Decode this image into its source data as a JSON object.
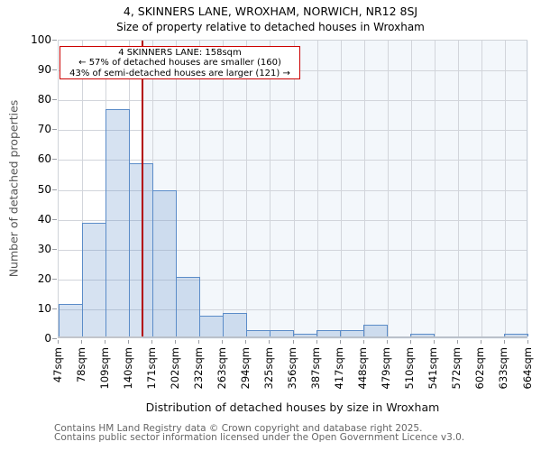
{
  "title": "4, SKINNERS LANE, WROXHAM, NORWICH, NR12 8SJ",
  "subtitle": "Size of property relative to detached houses in Wroxham",
  "annotation": {
    "line1": "4 SKINNERS LANE: 158sqm",
    "line2": "← 57% of detached houses are smaller (160)",
    "line3": "43% of semi-detached houses are larger (121) →"
  },
  "chart_data": {
    "type": "bar",
    "title": "4, SKINNERS LANE, WROXHAM, NORWICH, NR12 8SJ",
    "subtitle": "Size of property relative to detached houses in Wroxham",
    "xlabel": "Distribution of detached houses by size in Wroxham",
    "ylabel": "Number of detached properties",
    "bin_edges": [
      47,
      78,
      109,
      140,
      171,
      202,
      232,
      263,
      294,
      325,
      356,
      387,
      417,
      448,
      479,
      510,
      541,
      572,
      602,
      633,
      664
    ],
    "tick_labels": [
      "47sqm",
      "78sqm",
      "109sqm",
      "140sqm",
      "171sqm",
      "202sqm",
      "232sqm",
      "263sqm",
      "294sqm",
      "325sqm",
      "356sqm",
      "387sqm",
      "417sqm",
      "448sqm",
      "479sqm",
      "510sqm",
      "541sqm",
      "572sqm",
      "602sqm",
      "633sqm",
      "664sqm"
    ],
    "values": [
      11,
      38,
      76,
      58,
      49,
      20,
      7,
      8,
      2,
      2,
      1,
      2,
      2,
      4,
      0,
      1,
      0,
      0,
      0,
      1
    ],
    "ylim": [
      0,
      100
    ],
    "ytick_step": 10,
    "grid": true,
    "legend": null,
    "marker": {
      "value": 158,
      "unit": "sqm"
    },
    "colors": {
      "bar_edge": "#5b8cc8",
      "bar_fill": "rgba(91,140,200,0.25)",
      "marker_line": "#b30000",
      "annotation_border": "#cc0000",
      "shade_right_of_marker": "rgba(91,140,200,0.07)",
      "grid": "#d2d5db"
    }
  },
  "footer": {
    "line1": "Contains HM Land Registry data © Crown copyright and database right 2025.",
    "line2": "Contains public sector information licensed under the Open Government Licence v3.0."
  }
}
